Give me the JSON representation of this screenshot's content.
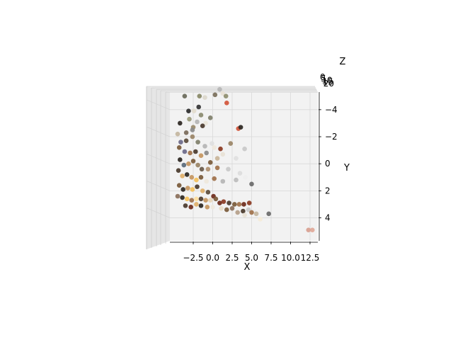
{
  "chart_data": {
    "type": "scatter",
    "projection": "3d",
    "title": "",
    "xlabel": "X",
    "ylabel": "Y",
    "zlabel": "Z",
    "xlim": [
      -5.5,
      13.5
    ],
    "ylim": [
      -5.3,
      5.7
    ],
    "xticks": [
      -2.5,
      0.0,
      2.5,
      5.0,
      7.5,
      10.0,
      12.5
    ],
    "xtick_labels": [
      "−2.5",
      "0.0",
      "2.5",
      "5.0",
      "7.5",
      "10.0",
      "12.5"
    ],
    "yticks": [
      -4,
      -2,
      0,
      2,
      4
    ],
    "ytick_labels": [
      "−4",
      "−2",
      "0",
      "2",
      "4"
    ],
    "zticks": [
      0,
      5,
      10,
      15,
      20
    ],
    "ztick_labels": [
      "0",
      "5",
      "10",
      "15",
      "20"
    ],
    "grid": true,
    "colors": [
      "#2b2621",
      "#4a3a2c",
      "#7a5a3a",
      "#a0714a",
      "#c4955e",
      "#e0b06a",
      "#f5c15c",
      "#8a8a8a",
      "#b5b5b5",
      "#6d6a8a",
      "#7f7f6a",
      "#9a8466",
      "#c9b59a",
      "#efe8dc",
      "#6e2a1a",
      "#8b3a22",
      "#d2553a",
      "#8a6f5a",
      "#5a6a7a"
    ],
    "points": [
      [
        -3.6,
        -5.0,
        "#6a6a5a"
      ],
      [
        -1.7,
        -5.0,
        "#888866"
      ],
      [
        0.3,
        -5.1,
        "#7a6f5a"
      ],
      [
        1.3,
        -5.2,
        "#e8e2d6"
      ],
      [
        1.7,
        -5.0,
        "#8e8e6f"
      ],
      [
        1.8,
        -4.5,
        "#d2553a"
      ],
      [
        0.9,
        -5.5,
        "#b5b5b5"
      ],
      [
        -1.0,
        -4.9,
        "#dcd8cc"
      ],
      [
        -3.1,
        -3.9,
        "#2b2b2b"
      ],
      [
        -2.4,
        -3.9,
        "#e3dccd"
      ],
      [
        -1.8,
        -4.2,
        "#333333"
      ],
      [
        -3.0,
        -3.3,
        "#9a9a7a"
      ],
      [
        -1.5,
        -3.6,
        "#8a8a6f"
      ],
      [
        -0.3,
        -3.4,
        "#7f7f6a"
      ],
      [
        -0.9,
        -3.0,
        "#ece6da"
      ],
      [
        -2.0,
        -3.1,
        "#b5b5b5"
      ],
      [
        -2.5,
        -2.7,
        "#9a8a6a"
      ],
      [
        -1.3,
        -2.8,
        "#4a3a2c"
      ],
      [
        -4.2,
        -3.0,
        "#2b2621"
      ],
      [
        -3.4,
        -2.3,
        "#7a6a5a"
      ],
      [
        -2.6,
        -2.5,
        "#8a8a8a"
      ],
      [
        -4.5,
        -2.2,
        "#c4b6a0"
      ],
      [
        -4.1,
        -1.6,
        "#6d6a8a"
      ],
      [
        -3.4,
        -1.7,
        "#5a4a3a"
      ],
      [
        -2.6,
        -2.0,
        "#9a8466"
      ],
      [
        -1.9,
        -1.6,
        "#7f7f6a"
      ],
      [
        -1.0,
        -1.3,
        "#b5b5b5"
      ],
      [
        -0.1,
        -1.5,
        "#e0e0e0"
      ],
      [
        1.0,
        -1.1,
        "#8b3a22"
      ],
      [
        0.2,
        -1.2,
        "#efe8dc"
      ],
      [
        3.3,
        -2.6,
        "#d2553a"
      ],
      [
        3.6,
        -2.7,
        "#2b2621"
      ],
      [
        4.1,
        -1.1,
        "#c9c9c9"
      ],
      [
        2.3,
        -1.5,
        "#9a8466"
      ],
      [
        -4.3,
        -1.2,
        "#7a5a3a"
      ],
      [
        -3.6,
        -0.9,
        "#6d6a8a"
      ],
      [
        -2.9,
        -0.8,
        "#a0714a"
      ],
      [
        -2.2,
        -0.9,
        "#4a3a2c"
      ],
      [
        -1.5,
        -0.6,
        "#c4955e"
      ],
      [
        -0.8,
        -0.8,
        "#8a8a8a"
      ],
      [
        -0.3,
        -0.1,
        "#7a5a3a"
      ],
      [
        0.6,
        -0.4,
        "#c9b59a"
      ],
      [
        1.3,
        -0.7,
        "#e8e2d6"
      ],
      [
        -4.2,
        -0.3,
        "#2b2621"
      ],
      [
        -3.7,
        0.1,
        "#5a6a7a"
      ],
      [
        -3.1,
        0.0,
        "#c4955e"
      ],
      [
        -2.5,
        -0.2,
        "#7a5a3a"
      ],
      [
        -1.9,
        0.1,
        "#9a8466"
      ],
      [
        -1.4,
        0.4,
        "#6a5a4a"
      ],
      [
        -0.6,
        0.4,
        "#b09070"
      ],
      [
        0.6,
        0.3,
        "#a0714a"
      ],
      [
        2.0,
        0.4,
        "#c9c9c9"
      ],
      [
        3.0,
        -0.4,
        "#e0e0e0"
      ],
      [
        3.5,
        0.7,
        "#dcdcdc"
      ],
      [
        3.0,
        1.2,
        "#bdbdbd"
      ],
      [
        5.0,
        1.5,
        "#6a6a6a"
      ],
      [
        4.2,
        1.0,
        "#efefef"
      ],
      [
        -4.4,
        0.5,
        "#4a3a2c"
      ],
      [
        -3.9,
        0.9,
        "#e0b06a"
      ],
      [
        -3.3,
        0.8,
        "#2b2621"
      ],
      [
        -2.7,
        1.0,
        "#c4955e"
      ],
      [
        -2.1,
        1.2,
        "#f5c15c"
      ],
      [
        -1.5,
        1.0,
        "#7a5a3a"
      ],
      [
        -0.8,
        1.3,
        "#efe8dc"
      ],
      [
        0.2,
        1.1,
        "#a0714a"
      ],
      [
        1.3,
        1.3,
        "#b5b5b5"
      ],
      [
        -4.3,
        1.6,
        "#7a5a3a"
      ],
      [
        -3.8,
        1.9,
        "#2b2621"
      ],
      [
        -3.2,
        1.8,
        "#c4955e"
      ],
      [
        -2.6,
        1.9,
        "#f5c15c"
      ],
      [
        -2.0,
        1.7,
        "#4a3a2c"
      ],
      [
        -1.3,
        2.0,
        "#e0b06a"
      ],
      [
        -0.6,
        2.1,
        "#5a4a3a"
      ],
      [
        0.1,
        2.4,
        "#6e2a1a"
      ],
      [
        -4.5,
        2.4,
        "#8a6f5a"
      ],
      [
        -3.9,
        2.5,
        "#2b2621"
      ],
      [
        -3.3,
        2.6,
        "#f5c15c"
      ],
      [
        -2.7,
        2.7,
        "#a0714a"
      ],
      [
        -2.1,
        2.6,
        "#ffe0a0"
      ],
      [
        -1.5,
        2.6,
        "#4a3a2c"
      ],
      [
        -0.9,
        2.7,
        "#c4955e"
      ],
      [
        -0.3,
        2.7,
        "#e8d6b8"
      ],
      [
        0.4,
        2.6,
        "#7a5a3a"
      ],
      [
        -3.5,
        3.1,
        "#4a3a2c"
      ],
      [
        -2.8,
        3.2,
        "#6e2a1a"
      ],
      [
        -2.1,
        3.0,
        "#e0b06a"
      ],
      [
        -1.5,
        3.1,
        "#2b2621"
      ],
      [
        -0.7,
        3.2,
        "#c4955e"
      ],
      [
        0.0,
        3.2,
        "#efe8dc"
      ],
      [
        0.9,
        2.9,
        "#6e2a1a"
      ],
      [
        1.4,
        2.8,
        "#8b3a22"
      ],
      [
        2.1,
        2.9,
        "#4a3a2c"
      ],
      [
        2.8,
        3.0,
        "#7a5a3a"
      ],
      [
        3.4,
        3.0,
        "#a0714a"
      ],
      [
        4.0,
        3.0,
        "#6e2a1a"
      ],
      [
        4.7,
        2.9,
        "#8b3a22"
      ],
      [
        1.1,
        3.3,
        "#e8dcc8"
      ],
      [
        1.8,
        3.4,
        "#7a5a3a"
      ],
      [
        2.5,
        3.3,
        "#8a6f5a"
      ],
      [
        3.2,
        3.6,
        "#b5a08a"
      ],
      [
        3.9,
        3.5,
        "#4a3a2c"
      ],
      [
        4.6,
        3.4,
        "#c9c9c9"
      ],
      [
        5.3,
        3.5,
        "#efefef"
      ],
      [
        5.6,
        3.7,
        "#c4b6a0"
      ],
      [
        4.1,
        3.8,
        "#e8e2d6"
      ],
      [
        5.0,
        3.6,
        "#a0714a"
      ],
      [
        7.2,
        3.7,
        "#6a6a6a"
      ],
      [
        12.3,
        4.9,
        "#d8a090"
      ],
      [
        12.8,
        4.9,
        "#e0a898"
      ],
      [
        6.1,
        4.1,
        "#f5ecd8"
      ]
    ]
  }
}
